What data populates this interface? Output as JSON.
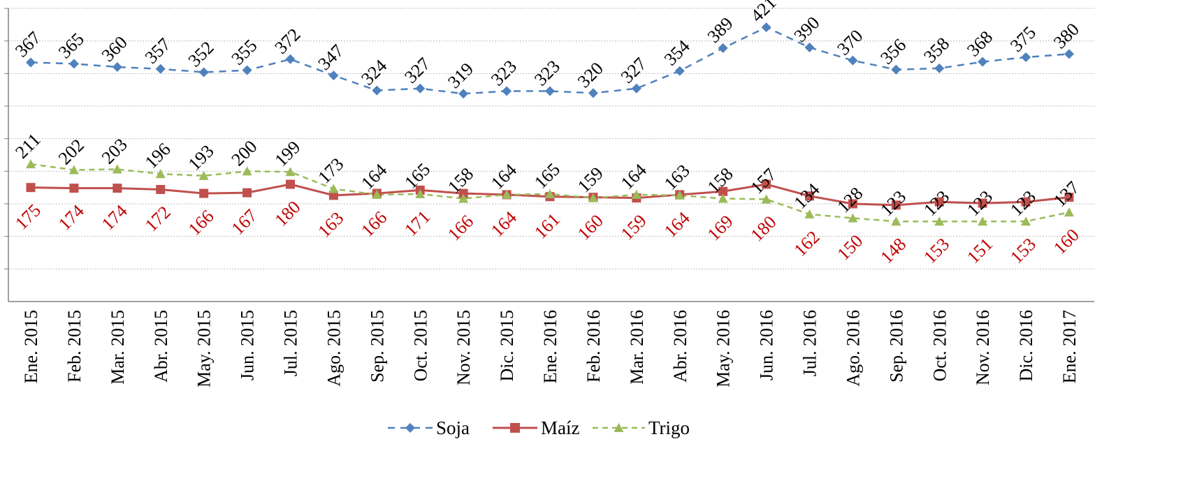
{
  "chart_data": {
    "type": "line",
    "categories": [
      "Ene. 2015",
      "Feb. 2015",
      "Mar. 2015",
      "Abr. 2015",
      "May. 2015",
      "Jun. 2015",
      "Jul. 2015",
      "Ago. 2015",
      "Sep. 2015",
      "Oct. 2015",
      "Nov. 2015",
      "Dic. 2015",
      "Ene. 2016",
      "Feb. 2016",
      "Mar. 2016",
      "Abr. 2016",
      "May. 2016",
      "Jun. 2016",
      "Jul. 2016",
      "Ago. 2016",
      "Sep. 2016",
      "Oct. 2016",
      "Nov. 2016",
      "Dic. 2016",
      "Ene. 2017"
    ],
    "series": [
      {
        "name": "Soja",
        "color": "#4f81bd",
        "line_style": "dashed",
        "marker": "diamond",
        "values": [
          367,
          365,
          360,
          357,
          352,
          355,
          372,
          347,
          324,
          327,
          319,
          323,
          323,
          320,
          327,
          354,
          389,
          421,
          390,
          370,
          356,
          358,
          368,
          375,
          380
        ]
      },
      {
        "name": "Maíz",
        "color": "#c0504d",
        "line_style": "solid",
        "marker": "square",
        "values": [
          175,
          174,
          174,
          172,
          166,
          167,
          180,
          163,
          166,
          171,
          166,
          164,
          161,
          160,
          159,
          164,
          169,
          180,
          162,
          150,
          148,
          153,
          151,
          153,
          160
        ]
      },
      {
        "name": "Trigo",
        "color": "#9bbb59",
        "line_style": "dashed",
        "marker": "triangle",
        "values": [
          211,
          202,
          203,
          196,
          193,
          200,
          199,
          173,
          164,
          165,
          158,
          164,
          165,
          159,
          164,
          163,
          158,
          157,
          134,
          128,
          123,
          123,
          123,
          123,
          137
        ]
      }
    ],
    "data_label_colors": {
      "Soja": "#000000",
      "Maíz": "#c00000",
      "Trigo": "#000000"
    },
    "ylim": [
      0,
      450
    ],
    "gridlines": true,
    "legend_position": "bottom",
    "title": "",
    "xlabel": "",
    "ylabel": ""
  }
}
